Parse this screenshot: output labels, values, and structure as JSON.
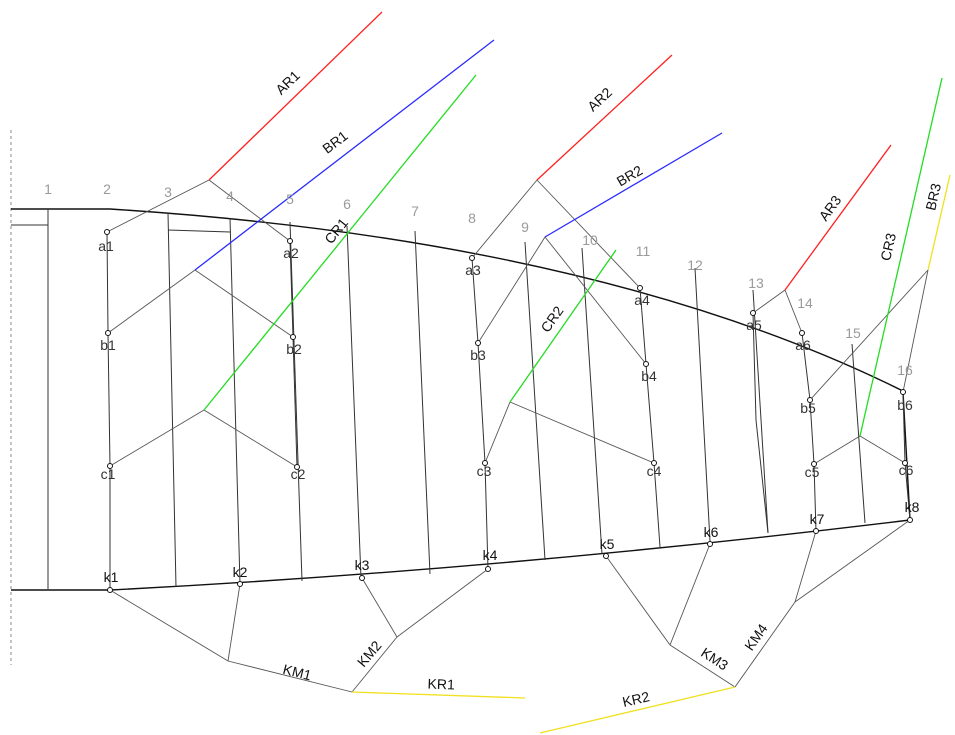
{
  "colors": {
    "hull": "#111111",
    "section": "#333333",
    "rigging": "#555555",
    "AR": "#ff2020",
    "BR": "#2a2aff",
    "CR": "#22dd22",
    "KR": "#f0e020",
    "axis": "#888888"
  },
  "section_numbers": [
    "1",
    "2",
    "3",
    "4",
    "5",
    "6",
    "7",
    "8",
    "9",
    "10",
    "11",
    "12",
    "13",
    "14",
    "15",
    "16"
  ],
  "points": {
    "a": [
      "a1",
      "a2",
      "a3",
      "a4",
      "a5",
      "a6"
    ],
    "b": [
      "b1",
      "b2",
      "b3",
      "b4",
      "b5",
      "b6"
    ],
    "c": [
      "c1",
      "c2",
      "c3",
      "c4",
      "c5",
      "c6"
    ],
    "k": [
      "k1",
      "k2",
      "k3",
      "k4",
      "k5",
      "k6",
      "k7",
      "k8"
    ]
  },
  "line_labels": {
    "AR1": "AR1",
    "BR1": "BR1",
    "CR1": "CR1",
    "AR2": "AR2",
    "BR2": "BR2",
    "CR2": "CR2",
    "AR3": "AR3",
    "BR3": "BR3",
    "CR3": "CR3",
    "KM1": "KM1",
    "KM2": "KM2",
    "KM3": "KM3",
    "KM4": "KM4",
    "KR1": "KR1",
    "KR2": "KR2"
  }
}
